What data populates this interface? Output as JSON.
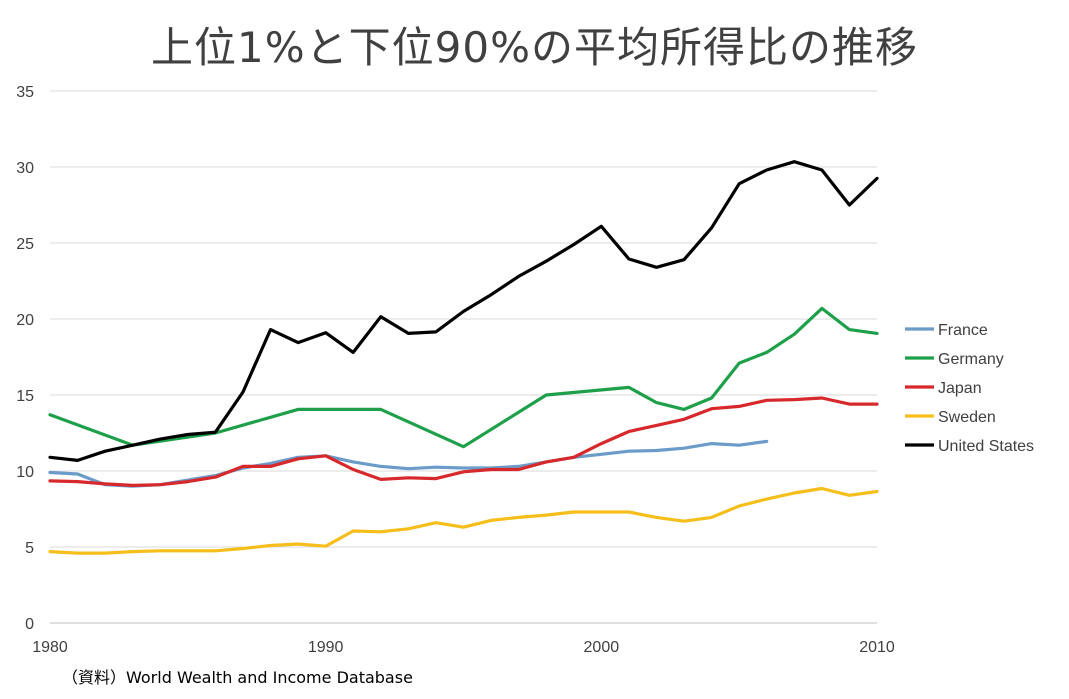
{
  "chart_data": {
    "type": "line",
    "title": "上位1%と下位90%の平均所得比の推移",
    "xlabel": "",
    "ylabel": "",
    "xlim": [
      1980,
      2010
    ],
    "ylim": [
      0,
      35
    ],
    "y_ticks": [
      0,
      5,
      10,
      15,
      20,
      25,
      30,
      35
    ],
    "x_ticks": [
      1980,
      1990,
      2000,
      2010
    ],
    "grid": true,
    "legend_position": "right",
    "source": "（資料）World Wealth and Income Database",
    "series": [
      {
        "name": "France",
        "color": "#6b9bc8",
        "points": [
          [
            1980,
            9.9
          ],
          [
            1981,
            9.8
          ],
          [
            1982,
            9.1
          ],
          [
            1983,
            9.0
          ],
          [
            1984,
            9.1
          ],
          [
            1985,
            9.4
          ],
          [
            1986,
            9.7
          ],
          [
            1987,
            10.2
          ],
          [
            1988,
            10.5
          ],
          [
            1989,
            10.9
          ],
          [
            1990,
            11.0
          ],
          [
            1991,
            10.6
          ],
          [
            1992,
            10.3
          ],
          [
            1993,
            10.15
          ],
          [
            1994,
            10.25
          ],
          [
            1995,
            10.2
          ],
          [
            1996,
            10.2
          ],
          [
            1997,
            10.3
          ],
          [
            1998,
            10.6
          ],
          [
            1999,
            10.9
          ],
          [
            2000,
            11.1
          ],
          [
            2001,
            11.3
          ],
          [
            2002,
            11.35
          ],
          [
            2003,
            11.5
          ],
          [
            2004,
            11.8
          ],
          [
            2005,
            11.7
          ],
          [
            2006,
            11.95
          ]
        ]
      },
      {
        "name": "Germany",
        "color": "#1ea04a",
        "points": [
          [
            1980,
            13.7
          ],
          [
            1983,
            11.7
          ],
          [
            1986,
            12.5
          ],
          [
            1989,
            14.05
          ],
          [
            1992,
            14.05
          ],
          [
            1995,
            11.6
          ],
          [
            1998,
            15.0
          ],
          [
            2001,
            15.5
          ],
          [
            2002,
            14.5
          ],
          [
            2003,
            14.05
          ],
          [
            2004,
            14.8
          ],
          [
            2005,
            17.1
          ],
          [
            2006,
            17.8
          ],
          [
            2007,
            19.0
          ],
          [
            2008,
            20.7
          ],
          [
            2009,
            19.3
          ],
          [
            2010,
            19.05
          ]
        ]
      },
      {
        "name": "Japan",
        "color": "#d7282b",
        "points": [
          [
            1980,
            9.35
          ],
          [
            1981,
            9.3
          ],
          [
            1982,
            9.15
          ],
          [
            1983,
            9.05
          ],
          [
            1984,
            9.1
          ],
          [
            1985,
            9.3
          ],
          [
            1986,
            9.6
          ],
          [
            1987,
            10.3
          ],
          [
            1988,
            10.3
          ],
          [
            1989,
            10.8
          ],
          [
            1990,
            11.0
          ],
          [
            1991,
            10.1
          ],
          [
            1992,
            9.45
          ],
          [
            1993,
            9.55
          ],
          [
            1994,
            9.5
          ],
          [
            1995,
            9.95
          ],
          [
            1996,
            10.1
          ],
          [
            1997,
            10.1
          ],
          [
            1998,
            10.6
          ],
          [
            1999,
            10.9
          ],
          [
            2000,
            11.8
          ],
          [
            2001,
            12.6
          ],
          [
            2002,
            13.0
          ],
          [
            2003,
            13.4
          ],
          [
            2004,
            14.1
          ],
          [
            2005,
            14.25
          ],
          [
            2006,
            14.65
          ],
          [
            2007,
            14.7
          ],
          [
            2008,
            14.8
          ],
          [
            2009,
            14.4
          ],
          [
            2010,
            14.4
          ]
        ]
      },
      {
        "name": "Sweden",
        "color": "#f5be1a",
        "points": [
          [
            1980,
            4.7
          ],
          [
            1981,
            4.6
          ],
          [
            1982,
            4.6
          ],
          [
            1983,
            4.7
          ],
          [
            1984,
            4.75
          ],
          [
            1985,
            4.75
          ],
          [
            1986,
            4.75
          ],
          [
            1987,
            4.9
          ],
          [
            1988,
            5.1
          ],
          [
            1989,
            5.2
          ],
          [
            1990,
            5.05
          ],
          [
            1991,
            6.05
          ],
          [
            1992,
            6.0
          ],
          [
            1993,
            6.2
          ],
          [
            1994,
            6.6
          ],
          [
            1995,
            6.3
          ],
          [
            1996,
            6.75
          ],
          [
            1997,
            6.95
          ],
          [
            1998,
            7.1
          ],
          [
            1999,
            7.3
          ],
          [
            2000,
            7.3
          ],
          [
            2001,
            7.3
          ],
          [
            2002,
            6.95
          ],
          [
            2003,
            6.7
          ],
          [
            2004,
            6.95
          ],
          [
            2005,
            7.7
          ],
          [
            2006,
            8.15
          ],
          [
            2007,
            8.55
          ],
          [
            2008,
            8.85
          ],
          [
            2009,
            8.4
          ],
          [
            2010,
            8.65
          ]
        ]
      },
      {
        "name": "United States",
        "color": "#000000",
        "points": [
          [
            1980,
            10.9
          ],
          [
            1981,
            10.7
          ],
          [
            1982,
            11.3
          ],
          [
            1983,
            11.7
          ],
          [
            1984,
            12.1
          ],
          [
            1985,
            12.4
          ],
          [
            1986,
            12.55
          ],
          [
            1987,
            15.2
          ],
          [
            1988,
            19.3
          ],
          [
            1989,
            18.45
          ],
          [
            1990,
            19.1
          ],
          [
            1991,
            17.8
          ],
          [
            1992,
            20.15
          ],
          [
            1993,
            19.05
          ],
          [
            1994,
            19.15
          ],
          [
            1995,
            20.5
          ],
          [
            1996,
            21.6
          ],
          [
            1997,
            22.8
          ],
          [
            1998,
            23.8
          ],
          [
            1999,
            24.9
          ],
          [
            2000,
            26.1
          ],
          [
            2001,
            23.95
          ],
          [
            2002,
            23.4
          ],
          [
            2003,
            23.9
          ],
          [
            2004,
            26.0
          ],
          [
            2005,
            28.9
          ],
          [
            2006,
            29.8
          ],
          [
            2007,
            30.35
          ],
          [
            2008,
            29.8
          ],
          [
            2009,
            27.5
          ],
          [
            2010,
            29.25
          ]
        ]
      }
    ]
  }
}
